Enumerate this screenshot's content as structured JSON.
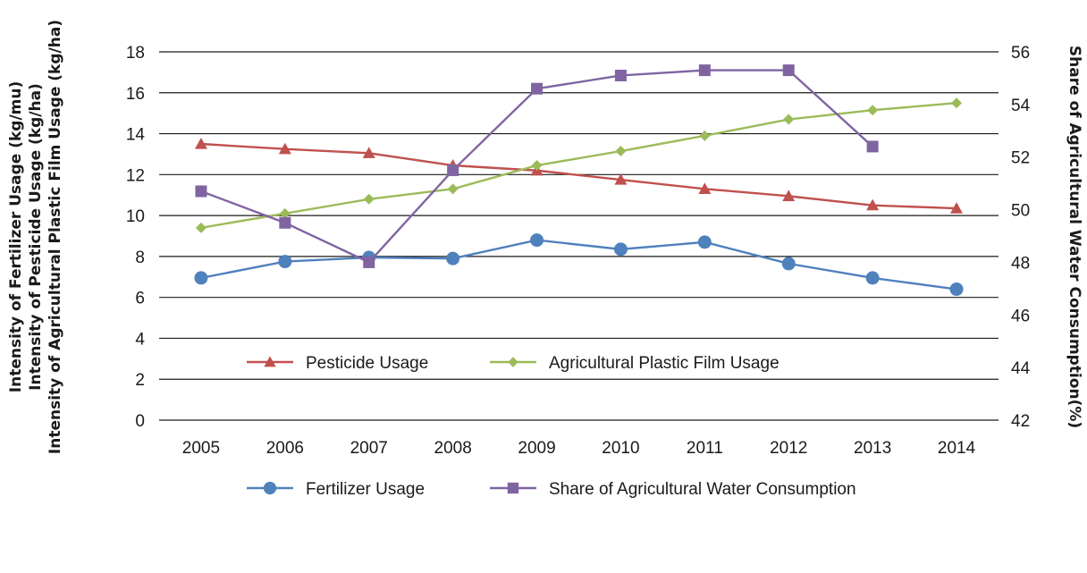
{
  "chart_data": {
    "type": "line",
    "categories": [
      "2005",
      "2006",
      "2007",
      "2008",
      "2009",
      "2010",
      "2011",
      "2012",
      "2013",
      "2014"
    ],
    "left_axis": {
      "labels": [
        "Intensity of Fertilizer Usage (kg/mu)",
        "Intensity of Pesticide Usage (kg/ha)",
        "Intensity of Agricultural Plastic Film Usage (kg/ha)"
      ],
      "ylim": [
        0,
        18
      ],
      "ticks": [
        0,
        2,
        4,
        6,
        8,
        10,
        12,
        14,
        16,
        18
      ]
    },
    "right_axis": {
      "label": "Share of Agricultural Water Consumption(%)",
      "ylim": [
        42,
        56
      ],
      "ticks": [
        42,
        44,
        46,
        48,
        50,
        52,
        54,
        56
      ]
    },
    "grid": true,
    "legend_position": "bottom",
    "series": [
      {
        "name": "Pesticide Usage",
        "axis": "left",
        "marker": "triangle",
        "color": "#c0504d",
        "values": [
          13.5,
          13.25,
          13.05,
          12.45,
          12.2,
          11.75,
          11.3,
          10.95,
          10.5,
          10.35
        ]
      },
      {
        "name": "Agricultural Plastic Film Usage",
        "axis": "left",
        "marker": "diamond",
        "color": "#9bbb59",
        "values": [
          9.4,
          10.1,
          10.8,
          11.3,
          12.45,
          13.15,
          13.9,
          14.7,
          15.15,
          15.5
        ]
      },
      {
        "name": "Fertilizer Usage",
        "axis": "left",
        "marker": "circle",
        "color": "#4f81bd",
        "values": [
          6.95,
          7.75,
          7.95,
          7.9,
          8.8,
          8.35,
          8.7,
          7.65,
          6.95,
          6.4
        ]
      },
      {
        "name": "Share of Agricultural Water Consumption",
        "axis": "right",
        "marker": "square",
        "color": "#8064a2",
        "values": [
          50.7,
          49.5,
          48.0,
          51.5,
          54.6,
          55.1,
          55.3,
          55.3,
          52.4,
          null
        ]
      }
    ]
  }
}
